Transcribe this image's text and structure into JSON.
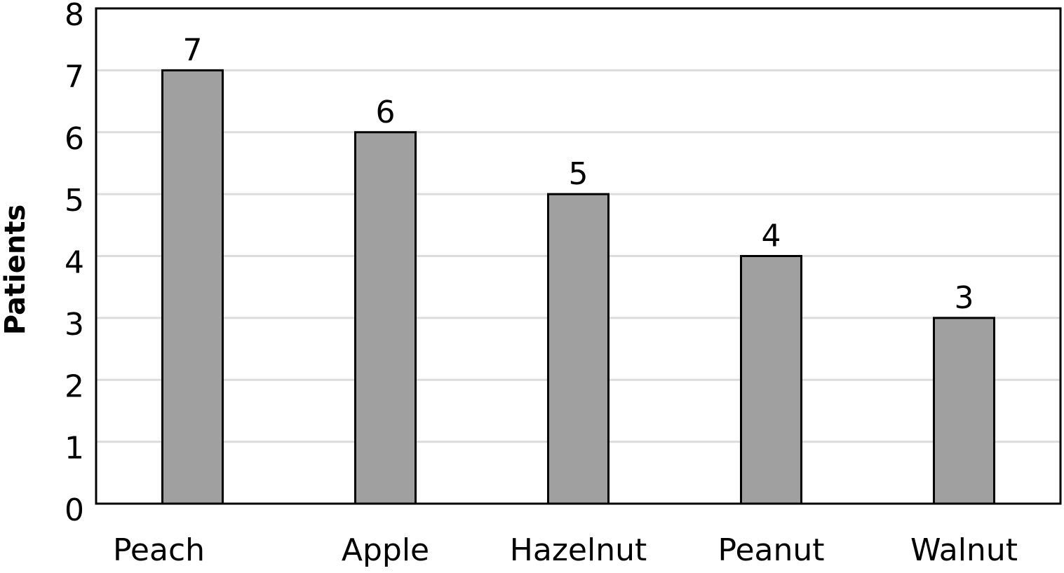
{
  "chart_data": {
    "type": "bar",
    "y_label": "Patients",
    "categories": [
      "Peach",
      "Apple",
      "Hazelnut",
      "Peanut",
      "Walnut"
    ],
    "values": [
      7,
      6,
      5,
      4,
      3
    ],
    "color": "#a0a0a0",
    "ylim": [
      0,
      8
    ],
    "yticks": [
      0,
      1,
      2,
      3,
      4,
      5,
      6,
      7,
      8
    ],
    "grid": true
  }
}
